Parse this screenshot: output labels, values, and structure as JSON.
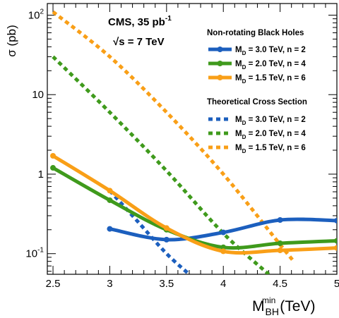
{
  "chart_data": {
    "type": "line",
    "title_line1": "CMS, 35 pb",
    "title_line1_sup": "-1",
    "title_line2": "√s = 7 TeV",
    "xlabel": "M",
    "xlabel_sub": "BH",
    "xlabel_sup": "min",
    "xlabel_unit": "(TeV)",
    "ylabel": "σ (pb)",
    "xlim": [
      2.45,
      5.0
    ],
    "ylim": [
      0.055,
      140
    ],
    "yscale": "log",
    "x_ticks": [
      2.5,
      3,
      3.5,
      4,
      4.5,
      5
    ],
    "x_tick_labels": [
      "2.5",
      "3",
      "3.5",
      "4",
      "4.5",
      "5"
    ],
    "y_ticks": [
      0.1,
      1,
      10,
      100
    ],
    "y_tick_labels": [
      {
        "base": "10",
        "sup": "-1"
      },
      {
        "base": "1",
        "sup": ""
      },
      {
        "base": "10",
        "sup": ""
      },
      {
        "base": "10",
        "sup": "2"
      }
    ],
    "legend_position": "top-right",
    "legend_group1_title": "Non-rotating Black Holes",
    "legend_group2_title": "Theoretical Cross Section",
    "limit_series": [
      {
        "label": "M",
        "label_sub": "D",
        "label_rest": " = 3.0 TeV, n = 2",
        "color": "#1c5fbe",
        "x": [
          3.0,
          3.5,
          4.0,
          4.5,
          5.0
        ],
        "y": [
          0.205,
          0.15,
          0.185,
          0.265,
          0.26
        ]
      },
      {
        "label": "M",
        "label_sub": "D",
        "label_rest": " = 2.0 TeV, n = 4",
        "color": "#3f9a1c",
        "x": [
          2.5,
          3.0,
          3.5,
          4.0,
          4.5,
          5.0
        ],
        "y": [
          1.2,
          0.47,
          0.2,
          0.12,
          0.135,
          0.145
        ]
      },
      {
        "label": "M",
        "label_sub": "D",
        "label_rest": " = 1.5 TeV, n = 6",
        "color": "#f99f17",
        "x": [
          2.5,
          3.0,
          3.5,
          4.0,
          4.5,
          5.0
        ],
        "y": [
          1.7,
          0.62,
          0.21,
          0.107,
          0.11,
          0.118
        ]
      }
    ],
    "theory_series": [
      {
        "label": "M",
        "label_sub": "D",
        "label_rest": " = 3.0 TeV, n = 2",
        "color": "#1c5fbe",
        "x": [
          3.0,
          3.25,
          3.5,
          3.7
        ],
        "y": [
          0.62,
          0.25,
          0.1,
          0.055
        ]
      },
      {
        "label": "M",
        "label_sub": "D",
        "label_rest": " = 2.0 TeV, n = 4",
        "color": "#3f9a1c",
        "x": [
          2.5,
          3.0,
          3.5,
          4.0,
          4.4
        ],
        "y": [
          30,
          6.0,
          1.1,
          0.18,
          0.055
        ]
      },
      {
        "label": "M",
        "label_sub": "D",
        "label_rest": " = 1.5 TeV, n = 6",
        "color": "#f99f17",
        "x": [
          2.5,
          3.0,
          3.5,
          4.0,
          4.5,
          4.62
        ],
        "y": [
          110,
          30,
          6.0,
          1.0,
          0.13,
          0.08
        ]
      }
    ]
  }
}
